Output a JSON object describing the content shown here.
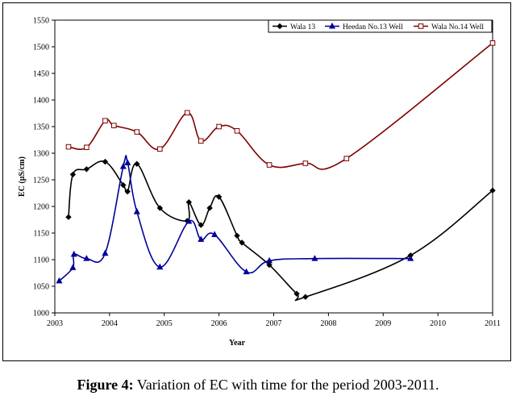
{
  "caption": {
    "label": "Figure 4:",
    "text": " Variation of EC with time for the period 2003-2011."
  },
  "chart_data": {
    "type": "line",
    "xlabel": "Year",
    "ylabel": "EC (µS/cm)",
    "xlim": [
      2003,
      2011
    ],
    "ylim": [
      1000,
      1550
    ],
    "xticks": [
      "2003",
      "2004",
      "2005",
      "2006",
      "2007",
      "2008",
      "2009",
      "2010",
      "2011"
    ],
    "yticks": [
      "1000",
      "1050",
      "1100",
      "1150",
      "1200",
      "1250",
      "1300",
      "1350",
      "1400",
      "1450",
      "1500",
      "1550"
    ],
    "grid": false,
    "legend_position": "top-right",
    "series": [
      {
        "name": "Wala 13",
        "color": "#000000",
        "marker": "diamond",
        "points": [
          [
            2003.25,
            1180
          ],
          [
            2003.33,
            1260
          ],
          [
            2003.58,
            1270
          ],
          [
            2003.92,
            1284
          ],
          [
            2004.25,
            1240
          ],
          [
            2004.33,
            1228
          ],
          [
            2004.5,
            1280
          ],
          [
            2004.92,
            1197
          ],
          [
            2005.42,
            1173
          ],
          [
            2005.45,
            1208
          ],
          [
            2005.67,
            1165
          ],
          [
            2005.83,
            1197
          ],
          [
            2006.0,
            1218
          ],
          [
            2006.33,
            1145
          ],
          [
            2006.42,
            1132
          ],
          [
            2006.92,
            1090
          ],
          [
            2007.42,
            1036
          ],
          [
            2007.58,
            1030
          ],
          [
            2009.5,
            1108
          ],
          [
            2011.0,
            1230
          ]
        ]
      },
      {
        "name": "Heedan No.13 Well",
        "color": "#000099",
        "marker": "triangle",
        "points": [
          [
            2003.08,
            1060
          ],
          [
            2003.33,
            1085
          ],
          [
            2003.35,
            1110
          ],
          [
            2003.58,
            1102
          ],
          [
            2003.92,
            1112
          ],
          [
            2004.25,
            1275
          ],
          [
            2004.33,
            1282
          ],
          [
            2004.5,
            1190
          ],
          [
            2004.92,
            1086
          ],
          [
            2005.45,
            1172
          ],
          [
            2005.67,
            1138
          ],
          [
            2005.92,
            1147
          ],
          [
            2006.5,
            1077
          ],
          [
            2006.92,
            1098
          ],
          [
            2007.75,
            1102
          ],
          [
            2009.5,
            1102
          ]
        ]
      },
      {
        "name": "Wala No.14 Well",
        "color": "#800000",
        "marker": "square",
        "points": [
          [
            2003.25,
            1312
          ],
          [
            2003.58,
            1311
          ],
          [
            2003.92,
            1361
          ],
          [
            2004.08,
            1352
          ],
          [
            2004.5,
            1340
          ],
          [
            2004.92,
            1308
          ],
          [
            2005.42,
            1376
          ],
          [
            2005.67,
            1323
          ],
          [
            2006.0,
            1350
          ],
          [
            2006.33,
            1342
          ],
          [
            2006.92,
            1278
          ],
          [
            2007.58,
            1281
          ],
          [
            2008.33,
            1290
          ],
          [
            2011.0,
            1507
          ]
        ]
      }
    ]
  }
}
